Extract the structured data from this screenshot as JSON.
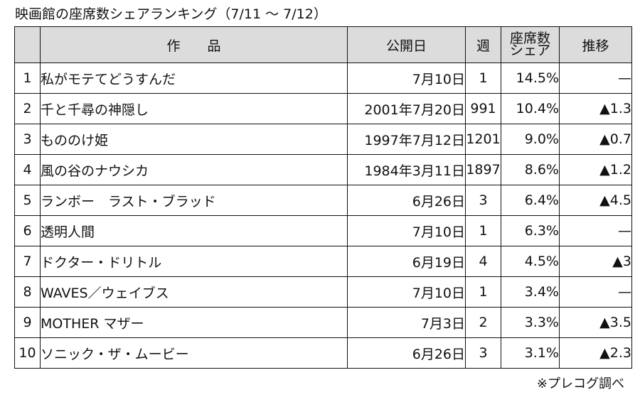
{
  "title": "映画館の座席数シェアランキング（7/11 ～ 7/12）",
  "columns": {
    "rank": "",
    "title": "作　　品",
    "release": "公開日",
    "weeks": "週",
    "share_line1": "座席数",
    "share_line2": "シェア",
    "trend": "推移"
  },
  "rows": [
    {
      "rank": "1",
      "title": "私がモテてどうすんだ",
      "release": "7月10日",
      "weeks": "1",
      "share": "14.5%",
      "trend": "—"
    },
    {
      "rank": "2",
      "title": "千と千尋の神隠し",
      "release": "2001年7月20日",
      "weeks": "991",
      "share": "10.4%",
      "trend": "▲1.3"
    },
    {
      "rank": "3",
      "title": "もののけ姫",
      "release": "1997年7月12日",
      "weeks": "1201",
      "share": "9.0%",
      "trend": "▲0.7"
    },
    {
      "rank": "4",
      "title": "風の谷のナウシカ",
      "release": "1984年3月11日",
      "weeks": "1897",
      "share": "8.6%",
      "trend": "▲1.2"
    },
    {
      "rank": "5",
      "title": "ランボー　ラスト・ブラッド",
      "release": "6月26日",
      "weeks": "3",
      "share": "6.4%",
      "trend": "▲4.5"
    },
    {
      "rank": "6",
      "title": "透明人間",
      "release": "7月10日",
      "weeks": "1",
      "share": "6.3%",
      "trend": "—"
    },
    {
      "rank": "7",
      "title": "ドクター・ドリトル",
      "release": "6月19日",
      "weeks": "4",
      "share": "4.5%",
      "trend": "▲3"
    },
    {
      "rank": "8",
      "title": "WAVES／ウェイブス",
      "release": "7月10日",
      "weeks": "1",
      "share": "3.4%",
      "trend": "—"
    },
    {
      "rank": "9",
      "title": "MOTHER マザー",
      "release": "7月3日",
      "weeks": "2",
      "share": "3.3%",
      "trend": "▲3.5"
    },
    {
      "rank": "10",
      "title": "ソニック・ザ・ムービー",
      "release": "6月26日",
      "weeks": "3",
      "share": "3.1%",
      "trend": "▲2.3"
    }
  ],
  "source": "※プレコグ調べ"
}
